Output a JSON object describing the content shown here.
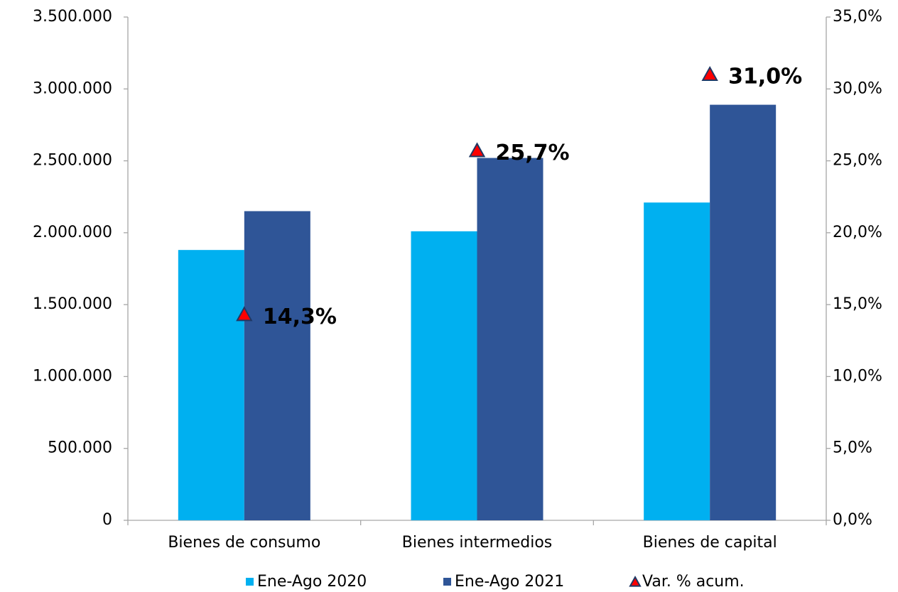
{
  "chart_data": {
    "type": "bar",
    "categories": [
      "Bienes de consumo",
      "Bienes intermedios",
      "Bienes de capital"
    ],
    "series": [
      {
        "name": "Ene-Ago 2020",
        "type": "bar",
        "color": "#00b0f0",
        "values": [
          1880000,
          2010000,
          2210000
        ]
      },
      {
        "name": "Ene-Ago 2021",
        "type": "bar",
        "color": "#2f5597",
        "values": [
          2150000,
          2520000,
          2890000
        ]
      },
      {
        "name": "Var. % acum.",
        "type": "marker",
        "axis": "y2",
        "color": "#ff0000",
        "values": [
          14.3,
          25.7,
          31.0
        ],
        "value_labels": [
          "14,3%",
          "25,7%",
          "31,0%"
        ]
      }
    ],
    "ylim": [
      0,
      3500000
    ],
    "yticks": [
      0,
      {
        "value": 500000,
        "label": "500.000"
      },
      {
        "value": 1000000,
        "label": "1.000.000"
      },
      {
        "value": 1500000,
        "label": "1.500.000"
      },
      {
        "value": 2000000,
        "label": "2.000.000"
      },
      {
        "value": 2500000,
        "label": "2.500.000"
      },
      {
        "value": 3000000,
        "label": "3.000.000"
      },
      {
        "value": 3500000,
        "label": "3.500.000"
      }
    ],
    "y2lim": [
      0,
      35
    ],
    "y2ticks": [
      {
        "value": 0,
        "label": "0,0%"
      },
      {
        "value": 5,
        "label": "5,0%"
      },
      {
        "value": 10,
        "label": "10,0%"
      },
      {
        "value": 15,
        "label": "15,0%"
      },
      {
        "value": 20,
        "label": "20,0%"
      },
      {
        "value": 25,
        "label": "25,0%"
      },
      {
        "value": 30,
        "label": "30,0%"
      },
      {
        "value": 35,
        "label": "35,0%"
      }
    ],
    "legend": "bottom"
  }
}
